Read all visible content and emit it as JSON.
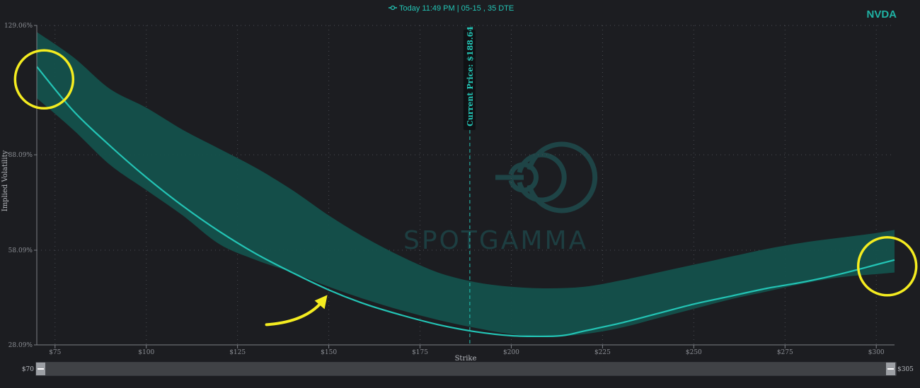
{
  "ticker": "NVDA",
  "legend": {
    "text": "Today 11:49 PM | 05-15 , 35 DTE",
    "color": "#23c4b5"
  },
  "watermark": "SPOTGAMMA",
  "current_price_label": "Current Price: $188.64",
  "range_slider": {
    "min_label": "$70",
    "max_label": "$305"
  },
  "colors": {
    "background": "#1c1d21",
    "line": "#23c4b5",
    "band": "#14514c",
    "annotation": "#f4ec20",
    "grid": "#4a4c52"
  },
  "chart_data": {
    "type": "line",
    "xlabel": "Strike",
    "ylabel": "Implied Volatility",
    "xlim": [
      70,
      305
    ],
    "ylim": [
      28.09,
      129.06
    ],
    "x_ticks": [
      75,
      100,
      125,
      150,
      175,
      200,
      225,
      250,
      275,
      300
    ],
    "x_tick_labels": [
      "$75",
      "$100",
      "$125",
      "$150",
      "$175",
      "$200",
      "$225",
      "$250",
      "$275",
      "$300"
    ],
    "y_ticks": [
      28.09,
      58.09,
      88.09,
      129.06
    ],
    "y_tick_labels": [
      "28.09%",
      "58.09%",
      "88.09%",
      "129.06%"
    ],
    "current_price": 188.64,
    "grid": true,
    "series": [
      {
        "name": "Today 11:49 PM | 05-15 , 35 DTE",
        "x": [
          70,
          80,
          90,
          100,
          110,
          120,
          130,
          140,
          150,
          160,
          170,
          180,
          190,
          200,
          210,
          215,
          220,
          230,
          240,
          250,
          260,
          270,
          280,
          290,
          300,
          305
        ],
        "y": [
          116,
          102,
          91,
          81,
          72,
          64,
          57,
          51,
          45.5,
          41,
          37.5,
          34.5,
          32.3,
          31,
          30.8,
          31.2,
          32.5,
          35,
          38,
          41,
          43.5,
          46,
          48,
          50.5,
          53.5,
          55
        ]
      }
    ],
    "band": {
      "x": [
        70,
        80,
        90,
        100,
        110,
        120,
        130,
        140,
        150,
        160,
        170,
        180,
        190,
        200,
        210,
        220,
        230,
        240,
        250,
        260,
        270,
        280,
        290,
        300,
        305
      ],
      "upper": [
        127,
        119,
        109,
        103,
        96,
        90,
        84,
        77,
        69,
        62,
        56,
        51,
        48,
        46.5,
        46,
        46.5,
        48.5,
        51,
        53.5,
        56,
        58.5,
        60.5,
        62,
        63.5,
        64.5
      ],
      "lower": [
        106,
        96,
        85,
        77,
        69,
        60,
        55,
        51,
        46.5,
        42.5,
        39,
        36,
        33.5,
        31.5,
        30.8,
        31.5,
        33.5,
        36.5,
        39.5,
        42.5,
        45,
        47.5,
        49.5,
        50.5,
        51
      ]
    },
    "annotations": [
      {
        "type": "circle",
        "x": 72,
        "y": 112
      },
      {
        "type": "circle",
        "x": 303,
        "y": 53
      },
      {
        "type": "arrow",
        "x": 150,
        "y": 43
      }
    ]
  }
}
